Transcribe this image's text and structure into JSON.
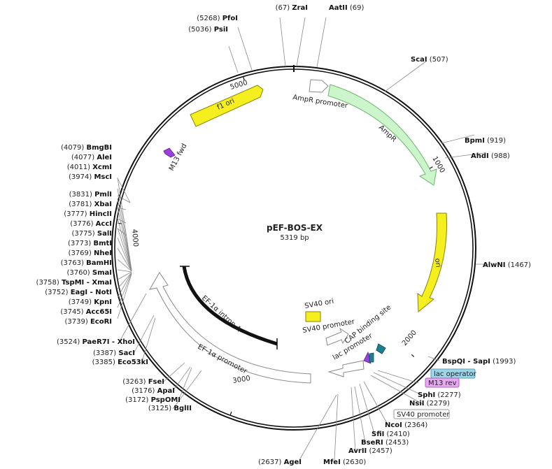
{
  "plasmid": {
    "name": "pEF-BOS-EX",
    "length_label": "5319 bp",
    "length": 5319
  },
  "tick_labels": [
    {
      "value": 1000,
      "label": "1000"
    },
    {
      "value": 2000,
      "label": "2000"
    },
    {
      "value": 3000,
      "label": "3000"
    },
    {
      "value": 4000,
      "label": "4000"
    },
    {
      "value": 5000,
      "label": "5000"
    }
  ],
  "features": [
    {
      "id": "f1-ori",
      "label": "f1 ori",
      "color": "#f5ef1f"
    },
    {
      "id": "ampr-promoter",
      "label": "AmpR promoter",
      "color": "#ffffff"
    },
    {
      "id": "ampr",
      "label": "AmpR",
      "color": "#ccf5cc"
    },
    {
      "id": "ori",
      "label": "ori",
      "color": "#f5ef1f"
    },
    {
      "id": "m13-fwd",
      "label": "M13 fwd",
      "color": "#9b3fe0"
    },
    {
      "id": "ef1a-intron",
      "label": "EF-1α intron A",
      "color": "#000000"
    },
    {
      "id": "ef1a-promoter",
      "label": "EF-1α promoter",
      "color": "#ffffff"
    },
    {
      "id": "sv40-ori",
      "label": "SV40 ori",
      "color": "#f5ef1f"
    },
    {
      "id": "sv40-promoter",
      "label": "SV40 promoter",
      "color": "#ffffff"
    },
    {
      "id": "cap-site",
      "label": "CAP binding site",
      "color": "#1f7f8f"
    },
    {
      "id": "lac-promoter",
      "label": "lac promoter",
      "color": "#ffffff"
    }
  ],
  "sites": [
    {
      "enzyme": "ZraI",
      "position": "(67)"
    },
    {
      "enzyme": "AatII",
      "position": "(69)"
    },
    {
      "enzyme": "ScaI",
      "position": "(507)"
    },
    {
      "enzyme": "BpmI",
      "position": "(919)"
    },
    {
      "enzyme": "AhdI",
      "position": "(988)"
    },
    {
      "enzyme": "AlwNI",
      "position": "(1467)"
    },
    {
      "enzyme": "BspQI - SapI",
      "position": "(1993)"
    },
    {
      "enzyme": "SphI",
      "position": "(2277)"
    },
    {
      "enzyme": "NsiI",
      "position": "(2279)"
    },
    {
      "enzyme": "NcoI",
      "position": "(2364)"
    },
    {
      "enzyme": "SfiI",
      "position": "(2410)"
    },
    {
      "enzyme": "BseRI",
      "position": "(2453)"
    },
    {
      "enzyme": "AvrII",
      "position": "(2457)"
    },
    {
      "enzyme": "MfeI",
      "position": "(2630)"
    },
    {
      "enzyme": "AgeI",
      "position": "(2637)"
    },
    {
      "enzyme": "BglII",
      "position": "(3125)"
    },
    {
      "enzyme": "PspOMI",
      "position": "(3172)"
    },
    {
      "enzyme": "ApaI",
      "position": "(3176)"
    },
    {
      "enzyme": "FseI",
      "position": "(3263)"
    },
    {
      "enzyme": "Eco53kI",
      "position": "(3385)"
    },
    {
      "enzyme": "SacI",
      "position": "(3387)"
    },
    {
      "enzyme": "PaeR7I - XhoI",
      "position": "(3524)"
    },
    {
      "enzyme": "EcoRI",
      "position": "(3739)"
    },
    {
      "enzyme": "Acc65I",
      "position": "(3745)"
    },
    {
      "enzyme": "KpnI",
      "position": "(3749)"
    },
    {
      "enzyme": "EagI - NotI",
      "position": "(3752)"
    },
    {
      "enzyme": "TspMI - XmaI",
      "position": "(3758)"
    },
    {
      "enzyme": "SmaI",
      "position": "(3760)"
    },
    {
      "enzyme": "BamHI",
      "position": "(3763)"
    },
    {
      "enzyme": "NheI",
      "position": "(3769)"
    },
    {
      "enzyme": "BmtI",
      "position": "(3773)"
    },
    {
      "enzyme": "SalI",
      "position": "(3775)"
    },
    {
      "enzyme": "AccI",
      "position": "(3776)"
    },
    {
      "enzyme": "HincII",
      "position": "(3777)"
    },
    {
      "enzyme": "XbaI",
      "position": "(3781)"
    },
    {
      "enzyme": "PmlI",
      "position": "(3831)"
    },
    {
      "enzyme": "MscI",
      "position": "(3974)"
    },
    {
      "enzyme": "XcmI",
      "position": "(4011)"
    },
    {
      "enzyme": "AleI",
      "position": "(4077)"
    },
    {
      "enzyme": "BmgBI",
      "position": "(4079)"
    },
    {
      "enzyme": "PsiI",
      "position": "(5036)"
    },
    {
      "enzyme": "PfoI",
      "position": "(5268)"
    }
  ],
  "boxed_labels": [
    {
      "id": "lac-operator",
      "label": "lac operator",
      "fill": "#9fd3e6",
      "stroke": "#5aa0b8"
    },
    {
      "id": "m13-rev",
      "label": "M13 rev",
      "fill": "#e6a8f0",
      "stroke": "#b060c0"
    },
    {
      "id": "sv40-promoter-box",
      "label": "SV40 promoter",
      "fill": "#ffffff",
      "stroke": "#9a9a9a"
    }
  ]
}
